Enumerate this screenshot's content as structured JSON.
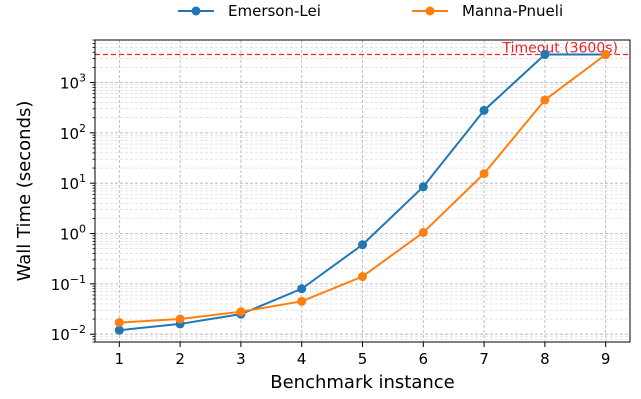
{
  "chart_data": {
    "type": "line",
    "xlabel": "Benchmark instance",
    "ylabel": "Wall Time (seconds)",
    "x": [
      1,
      2,
      3,
      4,
      5,
      6,
      7,
      8,
      9
    ],
    "x_tick_labels": [
      "1",
      "2",
      "3",
      "4",
      "5",
      "6",
      "7",
      "8",
      "9"
    ],
    "xlim": [
      0.6,
      9.4
    ],
    "y_scale": "log",
    "ylim": [
      0.007,
      7000
    ],
    "y_tick_values": [
      0.01,
      0.1,
      1,
      10,
      100,
      1000
    ],
    "y_tick_labels": [
      {
        "base": "10",
        "exp": "−2"
      },
      {
        "base": "10",
        "exp": "−1"
      },
      {
        "base": "10",
        "exp": "0"
      },
      {
        "base": "10",
        "exp": "1"
      },
      {
        "base": "10",
        "exp": "2"
      },
      {
        "base": "10",
        "exp": "3"
      }
    ],
    "grid": true,
    "legend_position": "top-center",
    "series": [
      {
        "name": "Emerson-Lei",
        "color": "#1f77b4",
        "values": [
          0.012,
          0.016,
          0.025,
          0.08,
          0.6,
          8.5,
          280,
          3600,
          3600
        ]
      },
      {
        "name": "Manna-Pnueli",
        "color": "#ff7f0e",
        "values": [
          0.017,
          0.02,
          0.028,
          0.045,
          0.14,
          1.05,
          15.5,
          450,
          3600
        ]
      }
    ],
    "reference_line": {
      "value": 3600,
      "label": "Timeout (3600s)",
      "color": "#e6242a",
      "style": "dashed"
    }
  }
}
